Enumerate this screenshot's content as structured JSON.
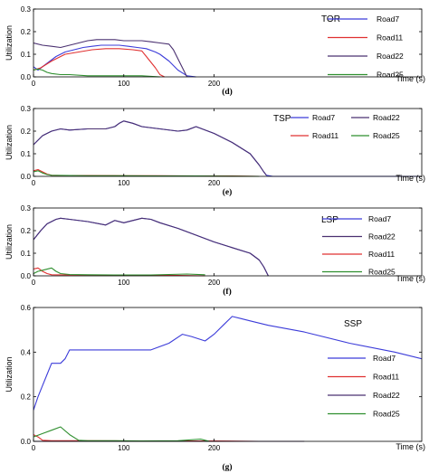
{
  "chart_data": [
    {
      "type": "line",
      "title": "TOR",
      "panel_label": "(d)",
      "xlabel": "Time (s)",
      "ylabel": "Utilization",
      "xlim": [
        0,
        430
      ],
      "ylim": [
        0,
        0.3
      ],
      "xticks": [
        0,
        100,
        200
      ],
      "yticks": [
        0,
        0.1,
        0.2,
        0.3
      ],
      "legend_position": "top-right",
      "series": [
        {
          "name": "Road7",
          "color": "#3c3cd9",
          "x": [
            0,
            5,
            15,
            25,
            35,
            45,
            55,
            65,
            75,
            85,
            95,
            105,
            115,
            125,
            135,
            140,
            150,
            160,
            170,
            180
          ],
          "y": [
            0.045,
            0.03,
            0.06,
            0.09,
            0.11,
            0.12,
            0.13,
            0.135,
            0.14,
            0.14,
            0.14,
            0.135,
            0.13,
            0.125,
            0.11,
            0.1,
            0.07,
            0.03,
            0.005,
            0
          ]
        },
        {
          "name": "Road11",
          "color": "#e03030",
          "x": [
            0,
            8,
            20,
            35,
            50,
            65,
            80,
            95,
            110,
            120,
            125,
            135,
            140,
            145
          ],
          "y": [
            0.03,
            0.04,
            0.07,
            0.1,
            0.11,
            0.12,
            0.125,
            0.125,
            0.12,
            0.115,
            0.09,
            0.04,
            0.01,
            0
          ]
        },
        {
          "name": "Road22",
          "color": "#4a3070",
          "x": [
            0,
            10,
            20,
            30,
            40,
            50,
            60,
            70,
            80,
            90,
            100,
            110,
            120,
            130,
            140,
            150,
            155,
            160,
            165,
            170
          ],
          "y": [
            0.15,
            0.14,
            0.135,
            0.13,
            0.14,
            0.15,
            0.16,
            0.165,
            0.165,
            0.165,
            0.16,
            0.16,
            0.16,
            0.155,
            0.15,
            0.145,
            0.12,
            0.08,
            0.04,
            0
          ]
        },
        {
          "name": "Road25",
          "color": "#2f8f2f",
          "x": [
            0,
            5,
            10,
            15,
            20,
            30,
            40,
            60,
            80,
            100,
            120,
            140
          ],
          "y": [
            0.03,
            0.035,
            0.03,
            0.02,
            0.015,
            0.01,
            0.01,
            0.005,
            0.005,
            0.005,
            0.005,
            0
          ]
        }
      ]
    },
    {
      "type": "line",
      "title": "TSP",
      "panel_label": "(e)",
      "xlabel": "Time (s)",
      "ylabel": "Utilization",
      "xlim": [
        0,
        430
      ],
      "ylim": [
        0,
        0.3
      ],
      "xticks": [
        0,
        100,
        200
      ],
      "yticks": [
        0,
        0.1,
        0.2,
        0.3
      ],
      "legend_position": "top-right",
      "series": [
        {
          "name": "Road7",
          "color": "#3c3cd9",
          "x": [
            0,
            10,
            20,
            30,
            40,
            60,
            80,
            90,
            95,
            100,
            110,
            120,
            140,
            160,
            170,
            180,
            200,
            220,
            240,
            250,
            255,
            258,
            265,
            280,
            300,
            320,
            340,
            360,
            380,
            400,
            420,
            430
          ],
          "y": [
            0.14,
            0.18,
            0.2,
            0.21,
            0.205,
            0.21,
            0.21,
            0.22,
            0.235,
            0.245,
            0.235,
            0.22,
            0.21,
            0.2,
            0.205,
            0.22,
            0.19,
            0.15,
            0.1,
            0.05,
            0.02,
            0.005,
            0,
            0,
            0,
            0,
            0,
            0,
            0,
            0,
            0,
            0
          ]
        },
        {
          "name": "Road22",
          "color": "#4a3070",
          "x": [
            0,
            10,
            20,
            30,
            40,
            60,
            80,
            90,
            95,
            100,
            110,
            120,
            140,
            160,
            170,
            180,
            200,
            220,
            240,
            250,
            255,
            258
          ],
          "y": [
            0.14,
            0.18,
            0.2,
            0.21,
            0.205,
            0.21,
            0.21,
            0.22,
            0.235,
            0.245,
            0.235,
            0.22,
            0.21,
            0.2,
            0.205,
            0.22,
            0.19,
            0.15,
            0.1,
            0.05,
            0.02,
            0.005
          ]
        },
        {
          "name": "Road11",
          "color": "#e03030",
          "x": [
            0,
            5,
            10,
            15,
            20,
            30,
            60,
            100,
            140,
            180,
            220,
            250
          ],
          "y": [
            0.025,
            0.03,
            0.02,
            0.01,
            0.005,
            0.004,
            0.004,
            0.003,
            0.003,
            0.002,
            0.002,
            0
          ]
        },
        {
          "name": "Road25",
          "color": "#2f8f2f",
          "x": [
            0,
            5,
            10,
            15,
            20,
            40,
            60,
            100,
            140,
            180,
            220,
            250
          ],
          "y": [
            0.02,
            0.025,
            0.015,
            0.008,
            0.005,
            0.004,
            0.003,
            0.003,
            0.002,
            0.002,
            0.001,
            0
          ]
        }
      ]
    },
    {
      "type": "line",
      "title": "LSP",
      "panel_label": "(f)",
      "xlabel": "Time (s)",
      "ylabel": "Utilization",
      "xlim": [
        0,
        430
      ],
      "ylim": [
        0,
        0.3
      ],
      "xticks": [
        0,
        100,
        200
      ],
      "yticks": [
        0,
        0.1,
        0.2,
        0.3
      ],
      "legend_position": "right",
      "series": [
        {
          "name": "Road7",
          "color": "#3c3cd9",
          "x": [
            0,
            8,
            15,
            25,
            30,
            40,
            60,
            80,
            90,
            100,
            110,
            120,
            130,
            140,
            160,
            180,
            200,
            220,
            240,
            250,
            255,
            260
          ],
          "y": [
            0.16,
            0.2,
            0.23,
            0.25,
            0.255,
            0.25,
            0.24,
            0.225,
            0.245,
            0.235,
            0.245,
            0.255,
            0.25,
            0.235,
            0.21,
            0.18,
            0.15,
            0.125,
            0.1,
            0.07,
            0.04,
            0
          ]
        },
        {
          "name": "Road22",
          "color": "#4a3070",
          "x": [
            0,
            8,
            15,
            25,
            30,
            40,
            60,
            80,
            90,
            100,
            110,
            120,
            130,
            140,
            160,
            180,
            200,
            220,
            240,
            250,
            255,
            260
          ],
          "y": [
            0.16,
            0.2,
            0.23,
            0.25,
            0.255,
            0.25,
            0.24,
            0.225,
            0.245,
            0.235,
            0.245,
            0.255,
            0.25,
            0.235,
            0.21,
            0.18,
            0.15,
            0.125,
            0.1,
            0.07,
            0.04,
            0
          ]
        },
        {
          "name": "Road11",
          "color": "#e03030",
          "x": [
            0,
            5,
            10,
            15,
            20,
            40,
            80,
            120,
            160,
            190
          ],
          "y": [
            0.03,
            0.035,
            0.02,
            0.01,
            0.005,
            0.004,
            0.003,
            0.003,
            0.002,
            0
          ]
        },
        {
          "name": "Road25",
          "color": "#2f8f2f",
          "x": [
            0,
            5,
            10,
            20,
            25,
            30,
            40,
            60,
            90,
            130,
            170,
            190
          ],
          "y": [
            0.01,
            0.02,
            0.025,
            0.035,
            0.02,
            0.01,
            0.006,
            0.005,
            0.004,
            0.004,
            0.008,
            0.005
          ]
        }
      ]
    },
    {
      "type": "line",
      "title": "SSP",
      "panel_label": "(g)",
      "xlabel": "Time (s)",
      "ylabel": "Utilization",
      "xlim": [
        0,
        430
      ],
      "ylim": [
        0,
        0.6
      ],
      "xticks": [
        0,
        100,
        200
      ],
      "yticks": [
        0,
        0.2,
        0.4,
        0.6
      ],
      "legend_position": "bottom-right",
      "series": [
        {
          "name": "Road7",
          "color": "#3c3cd9",
          "x": [
            0,
            5,
            10,
            15,
            20,
            30,
            35,
            40,
            50,
            60,
            80,
            100,
            130,
            150,
            165,
            175,
            190,
            200,
            210,
            220,
            230,
            240,
            260,
            300,
            350,
            400,
            430
          ],
          "y": [
            0.14,
            0.2,
            0.25,
            0.3,
            0.35,
            0.35,
            0.37,
            0.41,
            0.41,
            0.41,
            0.41,
            0.41,
            0.41,
            0.44,
            0.48,
            0.47,
            0.45,
            0.48,
            0.52,
            0.56,
            0.55,
            0.54,
            0.52,
            0.49,
            0.44,
            0.4,
            0.37
          ]
        },
        {
          "name": "Road11",
          "color": "#e03030",
          "x": [
            0,
            5,
            10,
            20,
            60,
            100,
            150,
            200,
            250
          ],
          "y": [
            0.03,
            0.02,
            0.005,
            0.003,
            0.003,
            0.002,
            0.002,
            0.002,
            0
          ]
        },
        {
          "name": "Road22",
          "color": "#4a3070",
          "x": [
            0,
            50,
            100,
            150,
            200,
            250,
            300
          ],
          "y": [
            0,
            0,
            0,
            0,
            0,
            0,
            0
          ]
        },
        {
          "name": "Road25",
          "color": "#2f8f2f",
          "x": [
            0,
            10,
            20,
            30,
            40,
            50,
            60,
            80,
            120,
            160,
            185,
            190,
            195
          ],
          "y": [
            0.02,
            0.035,
            0.05,
            0.065,
            0.03,
            0.005,
            0.003,
            0.003,
            0.002,
            0.003,
            0.01,
            0.005,
            0
          ]
        }
      ]
    }
  ]
}
